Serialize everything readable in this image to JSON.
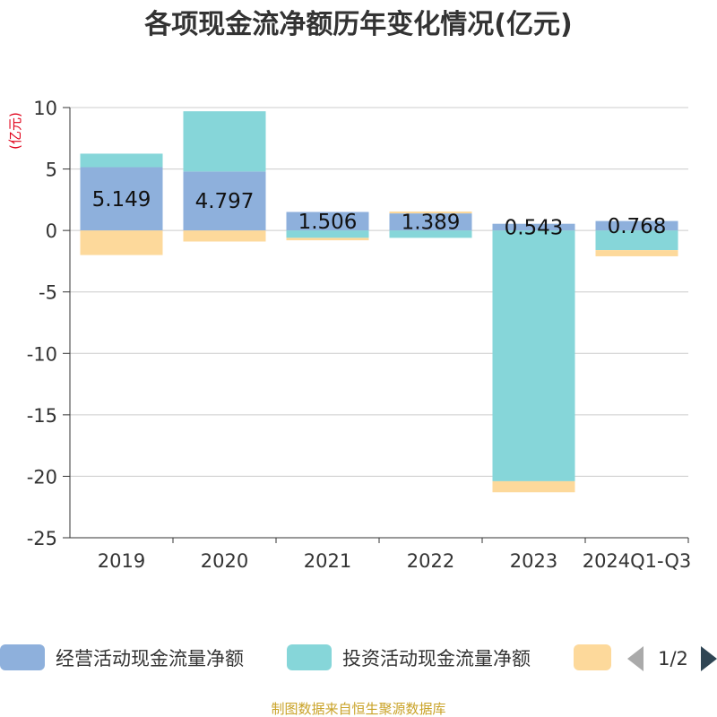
{
  "chart_data": {
    "type": "bar",
    "stacked": true,
    "title": "各项现金流净额历年变化情况(亿元)",
    "ylabel": "(亿元)",
    "xlabel": "",
    "ylim": [
      -25,
      10
    ],
    "yticks": [
      10,
      5,
      0,
      -5,
      -10,
      -15,
      -20,
      -25
    ],
    "categories": [
      "2019",
      "2020",
      "2021",
      "2022",
      "2023",
      "2024Q1-Q3"
    ],
    "series": [
      {
        "name": "经营活动现金流量净额",
        "color": "#8eb0dc",
        "values": [
          5.149,
          4.797,
          1.506,
          1.389,
          0.543,
          0.768
        ],
        "labels": [
          "5.149",
          "4.797",
          "1.506",
          "1.389",
          "0.543",
          "0.768"
        ]
      },
      {
        "name": "投资活动现金流量净额",
        "color": "#86d6d9",
        "values": [
          1.1,
          4.9,
          -0.6,
          -0.6,
          -20.4,
          -1.6
        ]
      },
      {
        "name": "",
        "color": "#fdd99b",
        "values": [
          -2.0,
          -0.9,
          -0.2,
          0.15,
          -0.9,
          -0.5
        ]
      }
    ],
    "legend_page": "1/2",
    "source": "制图数据来自恒生聚源数据库"
  }
}
